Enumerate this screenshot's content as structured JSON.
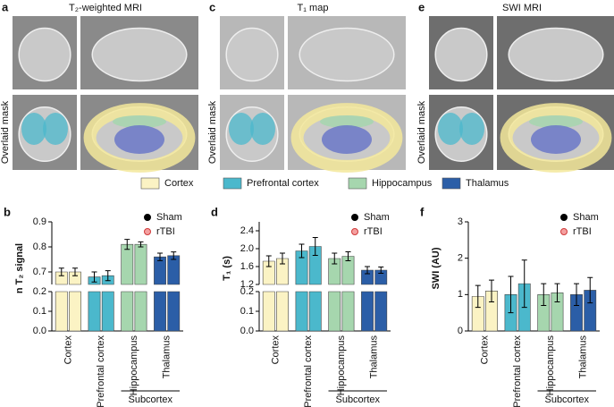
{
  "figure": {
    "panels": [
      {
        "label": "a",
        "title": "T₂-weighted MRI",
        "row_label": "Overlaid mask"
      },
      {
        "label": "c",
        "title": "T₁ map",
        "row_label": "Overlaid mask"
      },
      {
        "label": "e",
        "title": "SWI MRI",
        "row_label": "Overlaid mask"
      }
    ],
    "mask_legend": [
      "Cortex",
      "Prefrontal cortex",
      "Hippocampus",
      "Thalamus"
    ]
  },
  "chart_data": [
    {
      "type": "bar",
      "label": "b",
      "ylabel": "n T₂ signal",
      "categories": [
        "Cortex",
        "Prefrontal cortex",
        "Hippocampus",
        "Thalamus"
      ],
      "colors": [
        "#fbf3c4",
        "#4bb8cc",
        "#a6d6ae",
        "#2b5ea7"
      ],
      "group_label": "Subcortex",
      "series": [
        {
          "name": "Sham",
          "color": "#000000",
          "values": [
            0.7,
            0.68,
            0.81,
            0.76
          ],
          "errors": [
            0.015,
            0.02,
            0.02,
            0.015
          ]
        },
        {
          "name": "rTBI",
          "color": "#d03a3a",
          "values": [
            0.7,
            0.685,
            0.81,
            0.765
          ],
          "errors": [
            0.015,
            0.02,
            0.01,
            0.015
          ]
        }
      ],
      "ylim": [
        0,
        0.9
      ],
      "axis_break": [
        0.2,
        0.65
      ],
      "yticks": [
        {
          "value": 0,
          "label": "0.0"
        },
        0.1,
        0.2,
        0.7,
        0.8,
        0.9
      ]
    },
    {
      "type": "bar",
      "label": "d",
      "ylabel": "T₁ (s)",
      "categories": [
        "Cortex",
        "Prefrontal cortex",
        "Hippocampus",
        "Thalamus"
      ],
      "colors": [
        "#fbf3c4",
        "#4bb8cc",
        "#a6d6ae",
        "#2b5ea7"
      ],
      "group_label": "Subcortex",
      "series": [
        {
          "name": "Sham",
          "color": "#000000",
          "values": [
            1.72,
            1.95,
            1.78,
            1.52
          ],
          "errors": [
            0.12,
            0.15,
            0.12,
            0.08
          ]
        },
        {
          "name": "rTBI",
          "color": "#d03a3a",
          "values": [
            1.78,
            2.05,
            1.83,
            1.52
          ],
          "errors": [
            0.12,
            0.2,
            0.1,
            0.07
          ]
        }
      ],
      "ylim": [
        0,
        2.6
      ],
      "axis_break": [
        0.2,
        1.2
      ],
      "yticks": [
        {
          "value": 0,
          "label": "0.0"
        },
        0.1,
        0.2,
        1.2,
        1.6,
        {
          "value": 2,
          "label": "2.0"
        },
        2.4
      ]
    },
    {
      "type": "bar",
      "label": "f",
      "ylabel": "SWI (AU)",
      "categories": [
        "Cortex",
        "Prefrontal cortex",
        "Hippocampus",
        "Thalamus"
      ],
      "colors": [
        "#fbf3c4",
        "#4bb8cc",
        "#a6d6ae",
        "#2b5ea7"
      ],
      "group_label": "Subcortex",
      "series": [
        {
          "name": "Sham",
          "color": "#000000",
          "values": [
            0.95,
            1.0,
            1.0,
            1.0
          ],
          "errors": [
            0.3,
            0.5,
            0.3,
            0.3
          ]
        },
        {
          "name": "rTBI",
          "color": "#d03a3a",
          "values": [
            1.1,
            1.3,
            1.05,
            1.12
          ],
          "errors": [
            0.3,
            0.65,
            0.25,
            0.35
          ]
        }
      ],
      "ylim": [
        0,
        3
      ],
      "yticks": [
        0,
        1,
        2,
        3
      ]
    }
  ]
}
